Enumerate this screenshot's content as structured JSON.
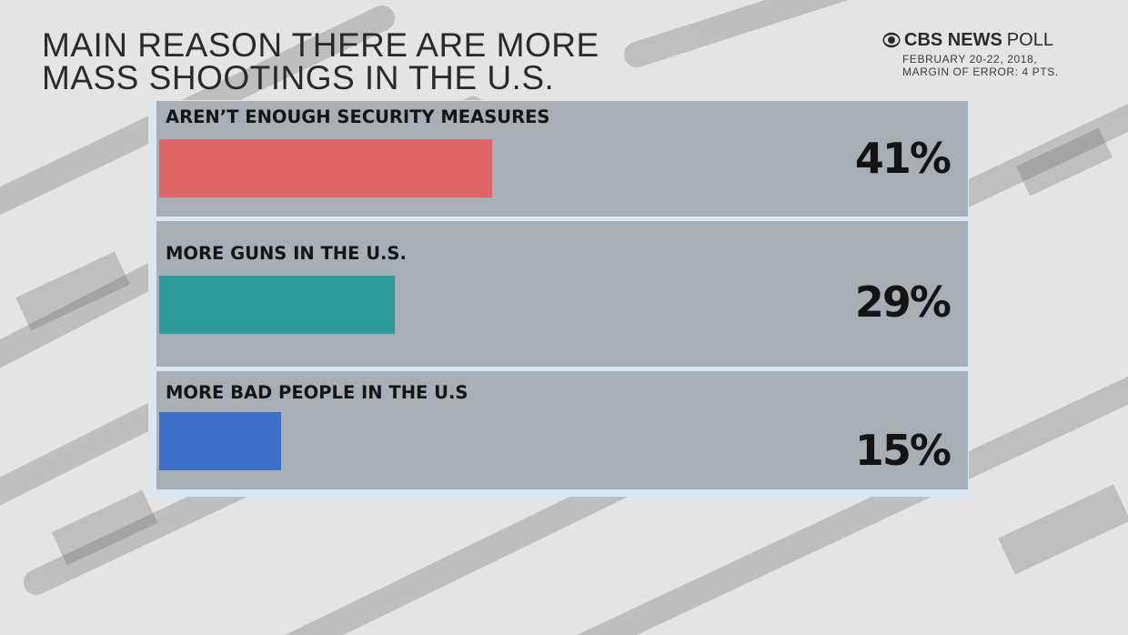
{
  "header": {
    "title_lines": [
      "MAIN REASON THERE ARE MORE",
      "MASS SHOOTINGS IN THE U.S."
    ],
    "brand_name": "CBS NEWS",
    "brand_suffix": "POLL",
    "brand_icon": "cbs-eye-icon",
    "sub_lines": [
      "FEBRUARY 20-22, 2018,",
      "MARGIN OF ERROR: 4 PTS."
    ]
  },
  "chart_data": {
    "type": "bar",
    "orientation": "horizontal",
    "title": "MAIN REASON THERE ARE MORE MASS SHOOTINGS IN THE U.S.",
    "categories": [
      "AREN’T ENOUGH SECURITY MEASURES",
      "MORE GUNS IN THE U.S.",
      "MORE BAD PEOPLE IN THE U.S"
    ],
    "values": [
      41,
      29,
      15
    ],
    "labels": [
      "41%",
      "29%",
      "15%"
    ],
    "colors": [
      "#dd6565",
      "#2a9a9a",
      "#3f6ec8"
    ],
    "unit": "%",
    "grid": false,
    "legend": "none"
  }
}
